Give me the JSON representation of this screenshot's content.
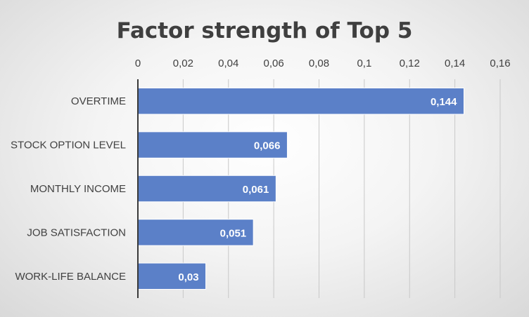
{
  "chart_data": {
    "type": "bar",
    "orientation": "horizontal",
    "title": "Factor strength of Top 5",
    "categories": [
      "OVERTIME",
      "STOCK OPTION LEVEL",
      "MONTHLY INCOME",
      "JOB SATISFACTION",
      "WORK-LIFE BALANCE"
    ],
    "values": [
      0.144,
      0.066,
      0.061,
      0.051,
      0.03
    ],
    "value_labels": [
      "0,144",
      "0,066",
      "0,061",
      "0,051",
      "0,03"
    ],
    "xlim": [
      0,
      0.16
    ],
    "xticks": [
      0,
      0.02,
      0.04,
      0.06,
      0.08,
      0.1,
      0.12,
      0.14,
      0.16
    ],
    "xtick_labels": [
      "0",
      "0,02",
      "0,04",
      "0,06",
      "0,08",
      "0,1",
      "0,12",
      "0,14",
      "0,16"
    ],
    "x_axis_position": "top",
    "grid": true,
    "legend": "none",
    "bar_color": "#5b80c8",
    "xlabel": "",
    "ylabel": ""
  }
}
